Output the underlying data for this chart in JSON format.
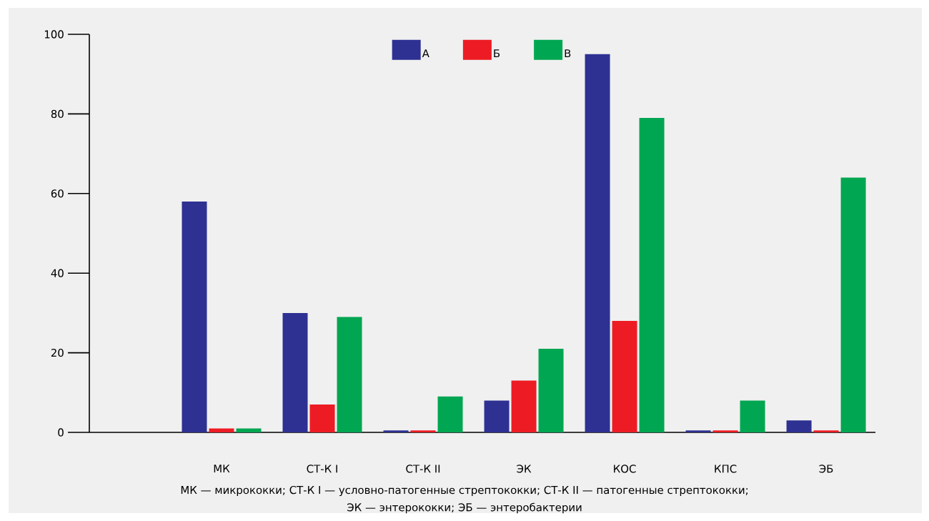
{
  "chart_data": {
    "type": "bar",
    "categories": [
      null,
      "МК",
      "СТ-К I",
      "СТ-К II",
      "ЭК",
      "КОС",
      "КПС",
      "ЭБ"
    ],
    "series": [
      {
        "name": "А",
        "color": "#2e3192",
        "values": [
          null,
          58,
          30,
          0.5,
          8,
          95,
          0.5,
          3
        ]
      },
      {
        "name": "Б",
        "color": "#ed1c24",
        "values": [
          null,
          1,
          7,
          0.5,
          13,
          28,
          0.5,
          0.5
        ]
      },
      {
        "name": "В",
        "color": "#00a651",
        "values": [
          null,
          1,
          29,
          9,
          21,
          79,
          8,
          64
        ]
      }
    ],
    "ylim": [
      0,
      100
    ],
    "yticks": [
      0,
      20,
      40,
      60,
      80,
      100
    ],
    "grid": false,
    "legend": "top",
    "annotations": [
      "МК — микрококки; СТ-К I — условно-патогенные стрептококки; СТ-К II — патогенные стрептококки;",
      "ЭК — энтерококки; ЭБ — энтеробактерии"
    ]
  }
}
